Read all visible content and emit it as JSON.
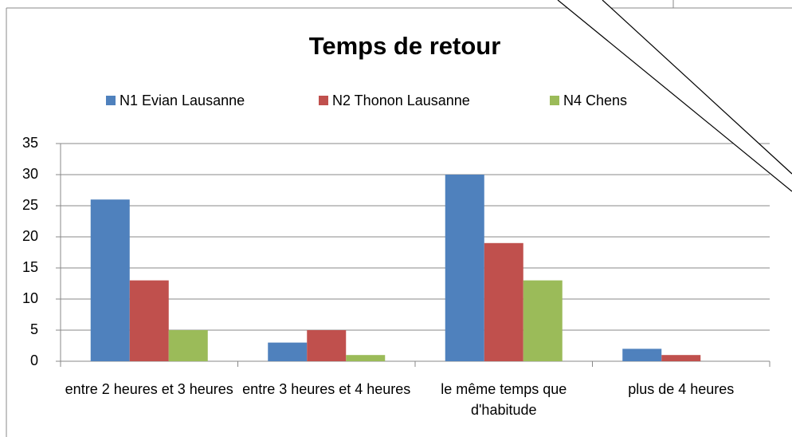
{
  "chart_data": {
    "type": "bar",
    "title": "Temps de retour",
    "categories": [
      "entre 2 heures et 3 heures",
      "entre 3 heures et 4 heures",
      "le même temps que d'habitude",
      "plus de 4 heures"
    ],
    "series": [
      {
        "name": "N1 Evian Lausanne",
        "color": "#4f81bd",
        "values": [
          26,
          3,
          30,
          2
        ]
      },
      {
        "name": "N2 Thonon Lausanne",
        "color": "#c0504d",
        "values": [
          13,
          5,
          19,
          1
        ]
      },
      {
        "name": "N4 Chens",
        "color": "#9bbb59",
        "values": [
          5,
          1,
          13,
          0
        ]
      }
    ],
    "ylim": [
      0,
      35
    ],
    "yticks": [
      0,
      5,
      10,
      15,
      20,
      25,
      30,
      35
    ],
    "grid": true,
    "legend": "top"
  }
}
